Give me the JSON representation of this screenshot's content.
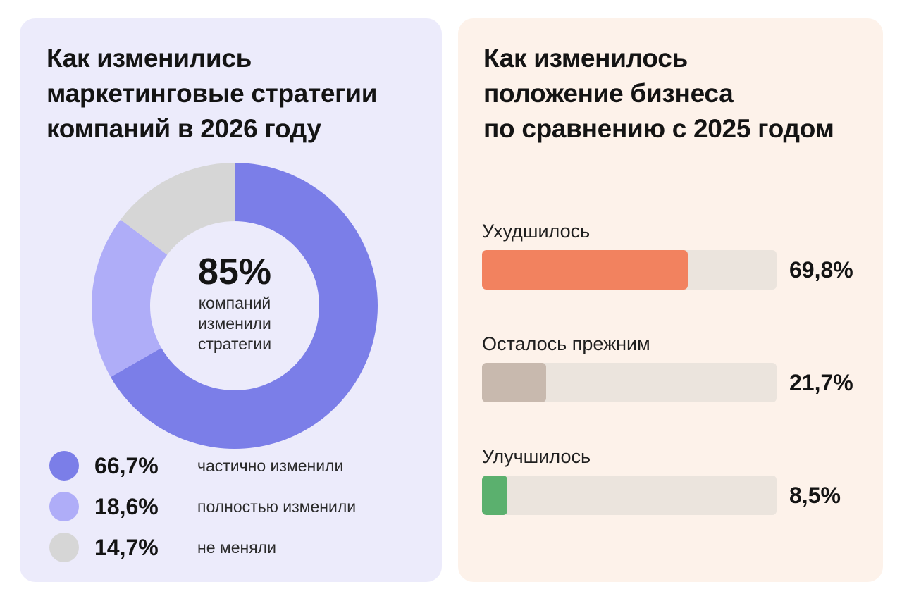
{
  "left_panel": {
    "title_lines": [
      "Как изменились",
      "маркетинговые стратегии",
      "компаний в 2026 году"
    ],
    "center_value": "85%",
    "center_label_lines": [
      "компаний",
      "изменили",
      "стратегии"
    ]
  },
  "right_panel": {
    "title_lines": [
      "Как изменилось",
      "положение бизнеса",
      "по сравнению с 2025 годом"
    ]
  },
  "chart_data": [
    {
      "type": "pie",
      "title": "Как изменились маркетинговые стратегии компаний в 2026 году",
      "donut": true,
      "start": "top, clockwise",
      "slices": [
        {
          "value": 66.7,
          "value_label": "66,7%",
          "label": "частично изменили",
          "color": "#7b7ee8"
        },
        {
          "value": 18.6,
          "value_label": "18,6%",
          "label": "полностью изменили",
          "color": "#afadf8"
        },
        {
          "value": 14.7,
          "value_label": "14,7%",
          "label": "не меняли",
          "color": "#d6d6d6"
        }
      ],
      "legend": "bottom"
    },
    {
      "type": "bar",
      "orientation": "horizontal",
      "title": "Как изменилось положение бизнеса по сравнению с 2025 годом",
      "xlim": [
        0,
        100
      ],
      "bars": [
        {
          "category": "Ухудшилось",
          "value": 69.8,
          "value_label": "69,8%",
          "color": "#f2825f"
        },
        {
          "category": "Осталось прежним",
          "value": 21.7,
          "value_label": "21,7%",
          "color": "#c8b9ae"
        },
        {
          "category": "Улучшилось",
          "value": 8.5,
          "value_label": "8,5%",
          "color": "#5bb06e"
        }
      ],
      "track_color": "#ebe4dd"
    }
  ]
}
